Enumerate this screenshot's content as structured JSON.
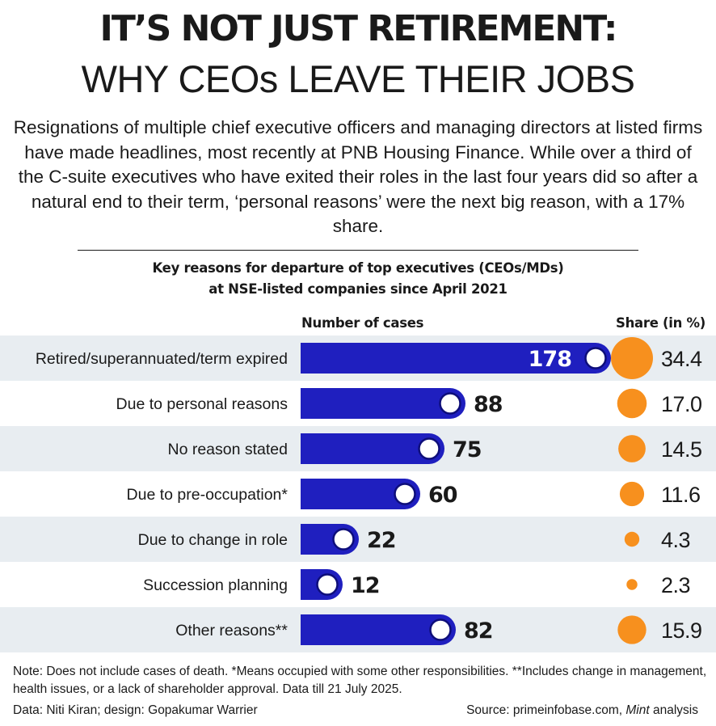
{
  "header": {
    "title_line1": "IT’S NOT JUST RETIREMENT:",
    "title_line2": "WHY CEOs LEAVE THEIR JOBS",
    "intro": "Resignations of multiple chief executive officers and managing directors at listed firms have made headlines, most recently at PNB Housing Finance. While over a third of the C-suite executives who have exited their roles in the last four years did so after a natural end to their term, ‘personal reasons’ were the next big reason, with a 17% share."
  },
  "chart_data": {
    "type": "bar",
    "orientation": "horizontal",
    "title_line1": "Key reasons for departure of top executives (CEOs/MDs)",
    "title_line2": "at NSE-listed companies since April 2021",
    "bar_header": "Number of cases",
    "share_header": "Share (in %)",
    "categories": [
      "Retired/superannuated/term expired",
      "Due to personal reasons",
      "No reason stated",
      "Due to pre-occupation*",
      "Due to change in role",
      "Succession planning",
      "Other reasons**"
    ],
    "series": [
      {
        "name": "Number of cases",
        "values": [
          178,
          88,
          75,
          60,
          22,
          12,
          82
        ]
      },
      {
        "name": "Share (in %)",
        "values": [
          "34.4",
          "17.0",
          "14.5",
          "11.6",
          "4.3",
          "2.3",
          "15.9"
        ]
      }
    ],
    "bar_color": "#1f1fbf",
    "share_color": "#f7901e",
    "row_stripe_color": "#e8edf1"
  },
  "footer": {
    "note": "Note: Does not include cases of death. *Means occupied with some other responsibilities. **Includes change in management, health issues, or a lack of shareholder approval. Data till 21 July 2025.",
    "credit_left": "Data: Niti Kiran; design: Gopakumar Warrier",
    "credit_right_prefix": "Source: primeinfobase.com,",
    "credit_right_italic": "Mint",
    "credit_right_suffix": "analysis"
  }
}
